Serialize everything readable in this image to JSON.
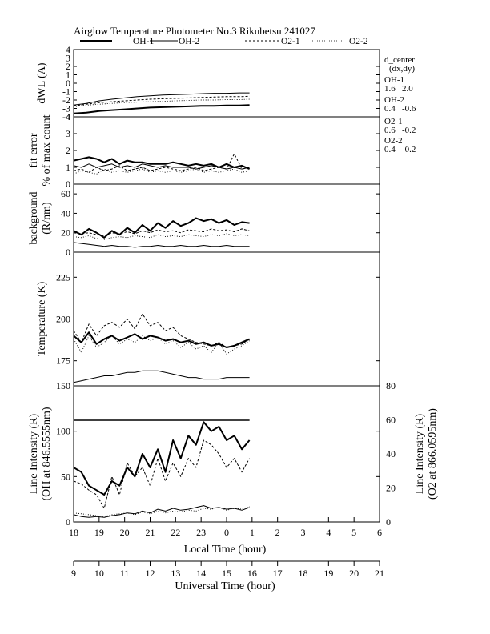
{
  "title": "Airglow Temperature Photometer No.3  Rikubetsu    241027",
  "legend": {
    "entries": [
      {
        "label": "OH-1",
        "style": "solid-thick"
      },
      {
        "label": "OH-2",
        "style": "solid-thin"
      },
      {
        "label": "O2-1",
        "style": "dashed"
      },
      {
        "label": "O2-2",
        "style": "dotted"
      }
    ]
  },
  "d_center": {
    "header": [
      "d_center",
      "(dx,dy)"
    ],
    "entries": [
      {
        "name": "OH-1",
        "values": "1.6   2.0"
      },
      {
        "name": "OH-2",
        "values": "0.4   -0.6"
      },
      {
        "name": "O2-1",
        "values": "0.6   -0.2"
      },
      {
        "name": "O2-2",
        "values": "0.4   -0.2"
      }
    ]
  },
  "x_axis": {
    "label": "Local Time (hour)",
    "ticks": [
      "18",
      "19",
      "20",
      "21",
      "22",
      "23",
      "0",
      "1",
      "2",
      "3",
      "4",
      "5",
      "6"
    ],
    "range_hours": [
      18,
      30
    ]
  },
  "x2_axis": {
    "label": "Universal Time (hour)",
    "ticks": [
      "9",
      "10",
      "11",
      "12",
      "13",
      "14",
      "15",
      "16",
      "17",
      "18",
      "19",
      "20",
      "21"
    ]
  },
  "colors": {
    "line": "#000000",
    "background": "#ffffff"
  },
  "chart_data": [
    {
      "type": "line",
      "id": "dwl",
      "ylabel": [
        "dWL (A)"
      ],
      "ylim": [
        -4,
        4
      ],
      "yticks": [
        "-4",
        "-3",
        "-2",
        "-1",
        "0",
        "1",
        "2",
        "3",
        "4"
      ],
      "x_hours": [
        18.0,
        18.5,
        19.0,
        19.5,
        20.0,
        20.5,
        21.0,
        21.5,
        22.0,
        22.5,
        23.0,
        23.5,
        24.0,
        24.5,
        24.9
      ],
      "series": [
        {
          "name": "OH-1",
          "style": "solid-thick",
          "values": [
            -3.6,
            -3.5,
            -3.3,
            -3.2,
            -3.1,
            -3.0,
            -2.9,
            -2.85,
            -2.8,
            -2.75,
            -2.7,
            -2.7,
            -2.65,
            -2.65,
            -2.6
          ]
        },
        {
          "name": "OH-2",
          "style": "solid-thin",
          "values": [
            -2.6,
            -2.4,
            -2.1,
            -1.9,
            -1.75,
            -1.6,
            -1.5,
            -1.4,
            -1.35,
            -1.3,
            -1.25,
            -1.2,
            -1.2,
            -1.15,
            -1.15
          ]
        },
        {
          "name": "O2-1",
          "style": "dashed",
          "values": [
            -2.7,
            -2.5,
            -2.3,
            -2.2,
            -2.1,
            -2.0,
            -1.9,
            -1.85,
            -1.8,
            -1.75,
            -1.7,
            -1.65,
            -1.6,
            -1.6,
            -1.55
          ]
        },
        {
          "name": "O2-2",
          "style": "dotted",
          "values": [
            -2.8,
            -2.6,
            -2.5,
            -2.4,
            -2.3,
            -2.25,
            -2.2,
            -2.15,
            -2.1,
            -2.05,
            -2.0,
            -2.0,
            -1.95,
            -1.95,
            -1.9
          ]
        }
      ]
    },
    {
      "type": "line",
      "id": "fit-error",
      "ylabel": [
        "fit error",
        "% of max count"
      ],
      "ylim": [
        0,
        4
      ],
      "yticks": [
        "0",
        "1",
        "2",
        "3",
        "4"
      ],
      "x_hours": [
        18.0,
        18.3,
        18.6,
        18.9,
        19.2,
        19.5,
        19.8,
        20.1,
        20.4,
        20.7,
        21.0,
        21.3,
        21.6,
        21.9,
        22.2,
        22.5,
        22.8,
        23.1,
        23.4,
        23.7,
        24.0,
        24.3,
        24.6,
        24.9
      ],
      "series": [
        {
          "name": "OH-1",
          "style": "solid-thick",
          "values": [
            1.4,
            1.5,
            1.6,
            1.5,
            1.3,
            1.5,
            1.2,
            1.4,
            1.3,
            1.3,
            1.2,
            1.2,
            1.2,
            1.3,
            1.2,
            1.1,
            1.2,
            1.1,
            1.2,
            1.0,
            1.2,
            1.0,
            1.1,
            0.9
          ]
        },
        {
          "name": "OH-2",
          "style": "solid-thin",
          "values": [
            1.1,
            1.0,
            1.2,
            1.0,
            1.1,
            1.2,
            1.0,
            1.1,
            1.0,
            1.2,
            1.1,
            1.0,
            1.1,
            1.0,
            1.0,
            1.0,
            0.9,
            1.0,
            1.1,
            1.0,
            0.9,
            1.0,
            0.9,
            1.0
          ]
        },
        {
          "name": "O2-1",
          "style": "dashed",
          "values": [
            0.8,
            0.9,
            0.7,
            1.0,
            0.8,
            0.9,
            1.1,
            0.8,
            0.9,
            1.0,
            0.8,
            0.9,
            1.0,
            0.9,
            0.8,
            0.9,
            1.0,
            0.8,
            0.9,
            1.0,
            0.9,
            1.8,
            0.9,
            1.0
          ]
        },
        {
          "name": "O2-2",
          "style": "dotted",
          "values": [
            0.6,
            0.8,
            0.7,
            0.6,
            0.9,
            0.7,
            0.8,
            0.7,
            0.8,
            0.9,
            0.7,
            0.8,
            0.7,
            0.8,
            0.7,
            0.8,
            0.9,
            0.7,
            0.8,
            0.7,
            0.8,
            0.9,
            0.7,
            0.8
          ]
        }
      ]
    },
    {
      "type": "line",
      "id": "background",
      "ylabel": [
        "background",
        "(R/nm)"
      ],
      "ylim": [
        0,
        70
      ],
      "yticks": [
        "0",
        "20",
        "40",
        "60"
      ],
      "x_hours": [
        18.0,
        18.3,
        18.6,
        18.9,
        19.2,
        19.5,
        19.8,
        20.1,
        20.4,
        20.7,
        21.0,
        21.3,
        21.6,
        21.9,
        22.2,
        22.5,
        22.8,
        23.1,
        23.4,
        23.7,
        24.0,
        24.3,
        24.6,
        24.9
      ],
      "series": [
        {
          "name": "OH-1",
          "style": "solid-thick",
          "values": [
            22,
            18,
            24,
            20,
            15,
            22,
            18,
            25,
            20,
            28,
            22,
            30,
            25,
            32,
            27,
            30,
            35,
            32,
            34,
            30,
            33,
            28,
            31,
            30
          ]
        },
        {
          "name": "OH-2",
          "style": "solid-thin",
          "values": [
            10,
            9,
            8,
            7,
            6,
            7,
            6,
            6,
            5,
            6,
            6,
            7,
            6,
            6,
            7,
            6,
            6,
            7,
            6,
            6,
            7,
            6,
            6,
            6
          ]
        },
        {
          "name": "O2-1",
          "style": "dashed",
          "values": [
            20,
            19,
            20,
            18,
            17,
            20,
            19,
            21,
            19,
            22,
            20,
            23,
            21,
            22,
            20,
            23,
            22,
            21,
            24,
            22,
            23,
            21,
            24,
            22
          ]
        },
        {
          "name": "O2-2",
          "style": "dotted",
          "values": [
            16,
            15,
            17,
            14,
            13,
            15,
            16,
            15,
            17,
            16,
            15,
            18,
            16,
            17,
            16,
            18,
            17,
            16,
            18,
            17,
            19,
            17,
            18,
            17
          ]
        }
      ]
    },
    {
      "type": "line",
      "id": "temperature",
      "ylabel": [
        "Temperature (K)"
      ],
      "ylim": [
        160,
        240
      ],
      "yticks": [
        "175",
        "200",
        "225"
      ],
      "x_hours": [
        18.0,
        18.3,
        18.6,
        18.9,
        19.2,
        19.5,
        19.8,
        20.1,
        20.4,
        20.7,
        21.0,
        21.3,
        21.6,
        21.9,
        22.2,
        22.5,
        22.8,
        23.1,
        23.4,
        23.7,
        24.0,
        24.3,
        24.6,
        24.9
      ],
      "series": [
        {
          "name": "OH-1",
          "style": "solid-thick",
          "values": [
            190,
            186,
            192,
            185,
            188,
            190,
            187,
            189,
            191,
            188,
            190,
            189,
            187,
            188,
            186,
            187,
            185,
            186,
            184,
            185,
            183,
            184,
            186,
            188
          ]
        },
        {
          "name": "OH-2",
          "style": "solid-thin",
          "values": [
            162,
            163,
            164,
            165,
            166,
            166,
            167,
            168,
            168,
            169,
            169,
            169,
            168,
            167,
            166,
            165,
            165,
            164,
            164,
            164,
            165,
            165,
            165,
            165
          ]
        },
        {
          "name": "O2-1",
          "style": "dashed",
          "values": [
            193,
            186,
            197,
            190,
            196,
            198,
            195,
            200,
            194,
            203,
            196,
            198,
            193,
            195,
            190,
            188,
            186,
            185,
            184,
            186,
            183,
            184,
            185,
            188
          ]
        },
        {
          "name": "O2-2",
          "style": "dotted",
          "values": [
            188,
            180,
            190,
            183,
            186,
            190,
            185,
            188,
            186,
            190,
            187,
            189,
            185,
            187,
            183,
            186,
            182,
            184,
            180,
            186,
            179,
            182,
            184,
            187
          ]
        }
      ]
    },
    {
      "type": "line",
      "id": "line-intensity",
      "ylabel": [
        "Line Intensity (R)",
        "(OH at 846.5555nm)"
      ],
      "y2label": [
        "Line Intensity (R)",
        "(O2 at 866.0595nm)"
      ],
      "ylim": [
        0,
        150
      ],
      "y2lim": [
        0,
        80
      ],
      "yticks": [
        "0",
        "50",
        "100",
        "150"
      ],
      "y2ticks": [
        "0",
        "20",
        "40",
        "60",
        "80"
      ],
      "x_hours": [
        18.0,
        18.3,
        18.6,
        18.9,
        19.2,
        19.5,
        19.8,
        20.1,
        20.4,
        20.7,
        21.0,
        21.3,
        21.6,
        21.9,
        22.2,
        22.5,
        22.8,
        23.1,
        23.4,
        23.7,
        24.0,
        24.3,
        24.6,
        24.9
      ],
      "series": [
        {
          "name": "OH-1",
          "style": "solid-thick",
          "values": [
            60,
            55,
            40,
            35,
            30,
            45,
            40,
            60,
            50,
            75,
            60,
            80,
            55,
            90,
            70,
            95,
            85,
            110,
            100,
            105,
            90,
            95,
            80,
            90
          ]
        },
        {
          "name": "OH-2",
          "style": "solid-thin",
          "values": [
            8,
            6,
            5,
            6,
            5,
            7,
            8,
            10,
            9,
            12,
            10,
            14,
            12,
            15,
            13,
            14,
            16,
            18,
            15,
            16,
            14,
            15,
            13,
            16
          ]
        },
        {
          "name": "O2-1",
          "style": "dashed",
          "values": [
            45,
            42,
            35,
            30,
            15,
            50,
            30,
            65,
            50,
            60,
            40,
            70,
            45,
            65,
            50,
            70,
            60,
            90,
            85,
            75,
            60,
            70,
            55,
            70
          ]
        },
        {
          "name": "O2-2",
          "style": "dotted",
          "values": [
            10,
            9,
            8,
            7,
            6,
            8,
            9,
            10,
            8,
            11,
            9,
            12,
            10,
            12,
            11,
            13,
            12,
            15,
            14,
            16,
            13,
            15,
            14,
            17
          ]
        }
      ]
    }
  ]
}
